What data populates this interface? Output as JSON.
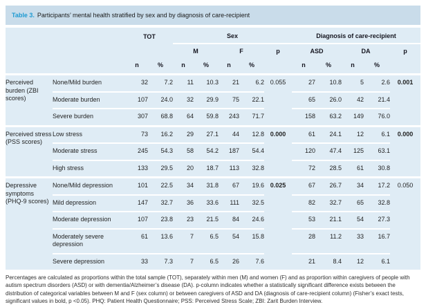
{
  "title": {
    "label": "Table 3.",
    "text": "Participants’ mental health stratified by sex and by diagnosis of care-recipient"
  },
  "colors": {
    "title_bar_bg": "#c9dcea",
    "table_bg": "#dfecf5",
    "separator": "#ffffff",
    "table_label_accent": "#1e9ad2",
    "text": "#1f1f1f"
  },
  "header": {
    "groups": {
      "tot": "TOT",
      "sex": "Sex",
      "diagnosis": "Diagnosis of care-recipient"
    },
    "subgroups": {
      "m": "M",
      "f": "F",
      "p_sex": "p",
      "asd": "ASD",
      "da": "DA",
      "p_dx": "p"
    },
    "units": {
      "n": "n",
      "pct": "%"
    }
  },
  "sections": [
    {
      "category": "Perceived burden (ZBI scores)",
      "rows": [
        {
          "label": "None/Mild burden",
          "tot_n": "32",
          "tot_pct": "7.2",
          "m_n": "11",
          "m_pct": "10.3",
          "f_n": "21",
          "f_pct": "6.2",
          "p_sex": "0.055",
          "p_sex_bold": false,
          "asd_n": "27",
          "asd_pct": "10.8",
          "da_n": "5",
          "da_pct": "2.6",
          "p_dx": "0.001",
          "p_dx_bold": true
        },
        {
          "label": "Moderate burden",
          "tot_n": "107",
          "tot_pct": "24.0",
          "m_n": "32",
          "m_pct": "29.9",
          "f_n": "75",
          "f_pct": "22.1",
          "p_sex": "",
          "p_sex_bold": false,
          "asd_n": "65",
          "asd_pct": "26.0",
          "da_n": "42",
          "da_pct": "21.4",
          "p_dx": "",
          "p_dx_bold": false
        },
        {
          "label": "Severe burden",
          "tot_n": "307",
          "tot_pct": "68.8",
          "m_n": "64",
          "m_pct": "59.8",
          "f_n": "243",
          "f_pct": "71.7",
          "p_sex": "",
          "p_sex_bold": false,
          "asd_n": "158",
          "asd_pct": "63.2",
          "da_n": "149",
          "da_pct": "76.0",
          "p_dx": "",
          "p_dx_bold": false
        }
      ]
    },
    {
      "category": "Perceived stress (PSS scores)",
      "rows": [
        {
          "label": "Low stress",
          "tot_n": "73",
          "tot_pct": "16.2",
          "m_n": "29",
          "m_pct": "27.1",
          "f_n": "44",
          "f_pct": "12.8",
          "p_sex": "0.000",
          "p_sex_bold": true,
          "asd_n": "61",
          "asd_pct": "24.1",
          "da_n": "12",
          "da_pct": "6.1",
          "p_dx": "0.000",
          "p_dx_bold": true
        },
        {
          "label": "Moderate stress",
          "tot_n": "245",
          "tot_pct": "54.3",
          "m_n": "58",
          "m_pct": "54.2",
          "f_n": "187",
          "f_pct": "54.4",
          "p_sex": "",
          "p_sex_bold": false,
          "asd_n": "120",
          "asd_pct": "47.4",
          "da_n": "125",
          "da_pct": "63.1",
          "p_dx": "",
          "p_dx_bold": false
        },
        {
          "label": "High stress",
          "tot_n": "133",
          "tot_pct": "29.5",
          "m_n": "20",
          "m_pct": "18.7",
          "f_n": "113",
          "f_pct": "32.8",
          "p_sex": "",
          "p_sex_bold": false,
          "asd_n": "72",
          "asd_pct": "28.5",
          "da_n": "61",
          "da_pct": "30.8",
          "p_dx": "",
          "p_dx_bold": false
        }
      ]
    },
    {
      "category": "Depressive symptoms (PHQ-9 scores)",
      "rows": [
        {
          "label": "None/Mild depression",
          "tot_n": "101",
          "tot_pct": "22.5",
          "m_n": "34",
          "m_pct": "31.8",
          "f_n": "67",
          "f_pct": "19.6",
          "p_sex": "0.025",
          "p_sex_bold": true,
          "asd_n": "67",
          "asd_pct": "26.7",
          "da_n": "34",
          "da_pct": "17.2",
          "p_dx": "0.050",
          "p_dx_bold": false
        },
        {
          "label": "Mild depression",
          "tot_n": "147",
          "tot_pct": "32.7",
          "m_n": "36",
          "m_pct": "33.6",
          "f_n": "111",
          "f_pct": "32.5",
          "p_sex": "",
          "p_sex_bold": false,
          "asd_n": "82",
          "asd_pct": "32.7",
          "da_n": "65",
          "da_pct": "32.8",
          "p_dx": "",
          "p_dx_bold": false
        },
        {
          "label": "Moderate depression",
          "tot_n": "107",
          "tot_pct": "23.8",
          "m_n": "23",
          "m_pct": "21.5",
          "f_n": "84",
          "f_pct": "24.6",
          "p_sex": "",
          "p_sex_bold": false,
          "asd_n": "53",
          "asd_pct": "21.1",
          "da_n": "54",
          "da_pct": "27.3",
          "p_dx": "",
          "p_dx_bold": false
        },
        {
          "label": "Moderately severe depression",
          "tot_n": "61",
          "tot_pct": "13.6",
          "m_n": "7",
          "m_pct": "6.5",
          "f_n": "54",
          "f_pct": "15.8",
          "p_sex": "",
          "p_sex_bold": false,
          "asd_n": "28",
          "asd_pct": "11.2",
          "da_n": "33",
          "da_pct": "16.7",
          "p_dx": "",
          "p_dx_bold": false
        },
        {
          "label": "Severe depression",
          "tot_n": "33",
          "tot_pct": "7.3",
          "m_n": "7",
          "m_pct": "6.5",
          "f_n": "26",
          "f_pct": "7.6",
          "p_sex": "",
          "p_sex_bold": false,
          "asd_n": "21",
          "asd_pct": "8.4",
          "da_n": "12",
          "da_pct": "6.1",
          "p_dx": "",
          "p_dx_bold": false
        }
      ]
    }
  ],
  "footnote": "Percentages are calculated as proportions within the total sample (TOT), separately within men (M) and women (F) and as proportion within caregivers of people with autism spectrum disorders (ASD) or with dementia/Alzheimer’s disease (DA). p-column indicates whether a statistically significant difference exists between the distribution of categorical variables between M and F (sex column) or between caregivers of ASD and DA (diagnosis of care-recipient column) (Fisher’s exact tests, significant values in bold, p <0.05). PHQ: Patient Health Questionnaire; PSS: Perceived Stress Scale; ZBI: Zarit Burden Interview."
}
